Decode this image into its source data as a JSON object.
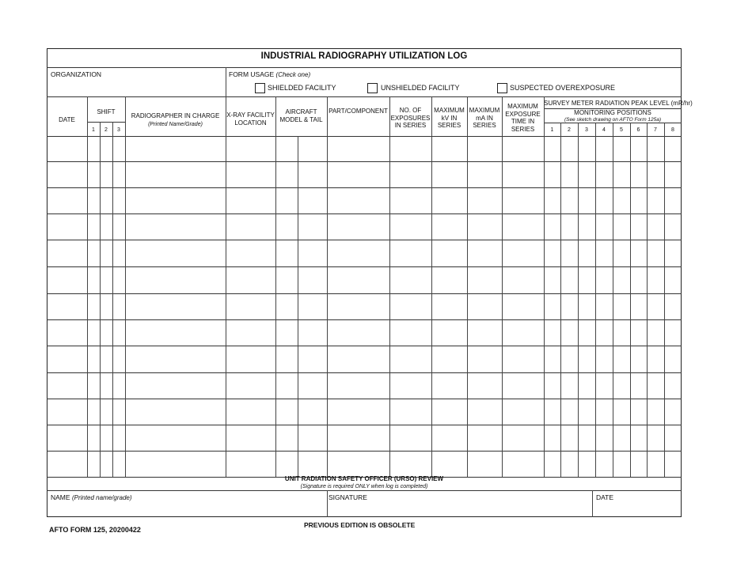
{
  "title": "INDUSTRIAL RADIOGRAPHY UTILIZATION LOG",
  "organization_label": "ORGANIZATION",
  "form_usage": {
    "label": "FORM USAGE",
    "hint": "(Check one)",
    "options": [
      {
        "label": "SHIELDED FACILITY",
        "checked": false
      },
      {
        "label": "UNSHIELDED FACILITY",
        "checked": false
      },
      {
        "label": "SUSPECTED OVEREXPOSURE",
        "checked": false
      }
    ]
  },
  "columns": {
    "date": "DATE",
    "shift": "SHIFT",
    "shift_nums": [
      "1",
      "2",
      "3"
    ],
    "radiographer": "RADIOGRAPHER IN CHARGE",
    "radiographer_hint": "(Printed Name/Grade)",
    "xray_1": "X-RAY FACILITY",
    "xray_2": "LOCATION",
    "aircraft_1": "AIRCRAFT",
    "aircraft_2": "MODEL & TAIL",
    "part": "PART/COMPONENT",
    "exposures_1": "NO. OF",
    "exposures_2": "EXPOSURES",
    "exposures_3": "IN SERIES",
    "kv_1": "MAXIMUM",
    "kv_2": "kV IN",
    "kv_3": "SERIES",
    "ma_1": "MAXIMUM",
    "ma_2": "mA IN",
    "ma_3": "SERIES",
    "time_1": "MAXIMUM",
    "time_2": "EXPOSURE",
    "time_3": "TIME IN",
    "time_4": "SERIES",
    "survey": "SURVEY METER RADIATION PEAK LEVEL (mR/hr)",
    "monitoring": "MONITORING POSITIONS",
    "monitoring_hint": "(See sketch drawing on AFTO Form 125a)",
    "positions": [
      "1",
      "2",
      "3",
      "4",
      "5",
      "6",
      "7",
      "8"
    ]
  },
  "review": {
    "title": "UNIT RADIATION SAFETY OFFICER (URSO) REVIEW",
    "hint": "(Signature is required ONLY when log is completed)",
    "name_label": "NAME",
    "name_hint": "(Printed name/grade)",
    "signature_label": "SIGNATURE",
    "date_label": "DATE"
  },
  "footer": {
    "form_id": "AFTO FORM 125, 20200422",
    "edition": "PREVIOUS EDITION IS OBSOLETE"
  }
}
